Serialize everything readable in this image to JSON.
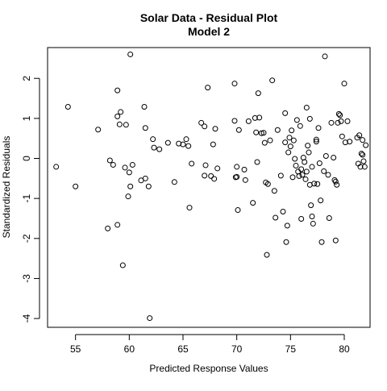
{
  "chart_data": {
    "type": "scatter",
    "title": "Solar Data - Residual Plot",
    "subtitle": "Model 2",
    "xlabel": "Predicted Response Values",
    "ylabel": "Standardized Residuals",
    "xlim": [
      52.4,
      82.4
    ],
    "ylim": [
      -4.22,
      2.77
    ],
    "x_ticks": [
      55,
      60,
      65,
      70,
      75,
      80
    ],
    "y_ticks": [
      -4,
      -3,
      -2,
      -1,
      0,
      1,
      2
    ],
    "x_tick_labels": [
      "55",
      "60",
      "65",
      "70",
      "75",
      "80"
    ],
    "y_tick_labels": [
      "-4",
      "-3",
      "-2",
      "-1",
      "0",
      "1",
      "2"
    ],
    "grid": false,
    "legend": "none",
    "marker": "open-circle",
    "colors": {
      "points": "#000000",
      "axes": "#000000",
      "background": "#ffffff"
    },
    "points": [
      {
        "x": 53.2,
        "y": -0.21
      },
      {
        "x": 54.3,
        "y": 1.29
      },
      {
        "x": 55.0,
        "y": -0.7
      },
      {
        "x": 57.1,
        "y": 0.72
      },
      {
        "x": 58.0,
        "y": -1.75
      },
      {
        "x": 58.2,
        "y": -0.05
      },
      {
        "x": 58.5,
        "y": -0.16
      },
      {
        "x": 58.9,
        "y": 1.7
      },
      {
        "x": 58.9,
        "y": 1.05
      },
      {
        "x": 58.9,
        "y": -1.66
      },
      {
        "x": 59.1,
        "y": 0.85
      },
      {
        "x": 59.2,
        "y": 1.16
      },
      {
        "x": 59.4,
        "y": -2.67
      },
      {
        "x": 59.6,
        "y": -0.23
      },
      {
        "x": 59.7,
        "y": 0.84
      },
      {
        "x": 59.9,
        "y": -0.95
      },
      {
        "x": 60.0,
        "y": -0.35
      },
      {
        "x": 60.1,
        "y": -0.7
      },
      {
        "x": 60.1,
        "y": 2.6
      },
      {
        "x": 60.3,
        "y": -0.16
      },
      {
        "x": 61.1,
        "y": -0.55
      },
      {
        "x": 61.4,
        "y": 1.29
      },
      {
        "x": 61.5,
        "y": -0.5
      },
      {
        "x": 61.5,
        "y": 0.76
      },
      {
        "x": 61.8,
        "y": -0.7
      },
      {
        "x": 61.9,
        "y": -3.99
      },
      {
        "x": 62.2,
        "y": 0.48
      },
      {
        "x": 62.3,
        "y": 0.27
      },
      {
        "x": 62.8,
        "y": 0.23
      },
      {
        "x": 63.6,
        "y": 0.39
      },
      {
        "x": 64.2,
        "y": -0.59
      },
      {
        "x": 64.6,
        "y": 0.37
      },
      {
        "x": 65.0,
        "y": 0.35
      },
      {
        "x": 65.3,
        "y": 0.48
      },
      {
        "x": 65.5,
        "y": 0.31
      },
      {
        "x": 65.6,
        "y": -1.23
      },
      {
        "x": 65.8,
        "y": -0.13
      },
      {
        "x": 66.7,
        "y": 0.89
      },
      {
        "x": 67.0,
        "y": 0.8
      },
      {
        "x": 67.1,
        "y": -0.17
      },
      {
        "x": 67.0,
        "y": -0.43
      },
      {
        "x": 67.3,
        "y": 1.77
      },
      {
        "x": 67.6,
        "y": -0.44
      },
      {
        "x": 67.8,
        "y": 0.35
      },
      {
        "x": 67.9,
        "y": -0.51
      },
      {
        "x": 68.0,
        "y": 0.74
      },
      {
        "x": 68.2,
        "y": -0.25
      },
      {
        "x": 69.8,
        "y": 1.87
      },
      {
        "x": 69.8,
        "y": 0.94
      },
      {
        "x": 69.9,
        "y": -0.47
      },
      {
        "x": 70.0,
        "y": -0.46
      },
      {
        "x": 70.0,
        "y": -0.21
      },
      {
        "x": 70.1,
        "y": -1.29
      },
      {
        "x": 70.2,
        "y": 0.71
      },
      {
        "x": 70.7,
        "y": -0.28
      },
      {
        "x": 70.8,
        "y": -0.54
      },
      {
        "x": 71.1,
        "y": 0.93
      },
      {
        "x": 71.5,
        "y": -1.11
      },
      {
        "x": 71.7,
        "y": 1.01
      },
      {
        "x": 71.8,
        "y": 0.65
      },
      {
        "x": 71.9,
        "y": -0.09
      },
      {
        "x": 72.0,
        "y": 1.63
      },
      {
        "x": 72.1,
        "y": 1.02
      },
      {
        "x": 72.3,
        "y": 0.63
      },
      {
        "x": 72.5,
        "y": 0.64
      },
      {
        "x": 72.6,
        "y": 0.39
      },
      {
        "x": 72.7,
        "y": -0.6
      },
      {
        "x": 72.8,
        "y": -2.41
      },
      {
        "x": 72.9,
        "y": -0.64
      },
      {
        "x": 73.1,
        "y": 0.45
      },
      {
        "x": 73.3,
        "y": 1.95
      },
      {
        "x": 73.5,
        "y": -0.81
      },
      {
        "x": 73.6,
        "y": -1.48
      },
      {
        "x": 73.8,
        "y": 0.71
      },
      {
        "x": 74.1,
        "y": -0.43
      },
      {
        "x": 74.3,
        "y": -1.33
      },
      {
        "x": 74.5,
        "y": 1.13
      },
      {
        "x": 74.5,
        "y": 0.4
      },
      {
        "x": 74.6,
        "y": -2.09
      },
      {
        "x": 74.7,
        "y": -1.68
      },
      {
        "x": 74.8,
        "y": 0.15
      },
      {
        "x": 74.9,
        "y": 0.52
      },
      {
        "x": 75.0,
        "y": 0.3
      },
      {
        "x": 75.1,
        "y": 0.7
      },
      {
        "x": 75.2,
        "y": -0.47
      },
      {
        "x": 75.3,
        "y": 0.45
      },
      {
        "x": 75.4,
        "y": -0.01
      },
      {
        "x": 75.5,
        "y": -0.18
      },
      {
        "x": 75.6,
        "y": 0.96
      },
      {
        "x": 75.7,
        "y": -0.33
      },
      {
        "x": 75.8,
        "y": -0.44
      },
      {
        "x": 75.9,
        "y": 0.81
      },
      {
        "x": 76.0,
        "y": -0.27
      },
      {
        "x": 76.0,
        "y": -1.51
      },
      {
        "x": 76.1,
        "y": -0.41
      },
      {
        "x": 76.2,
        "y": 0.02
      },
      {
        "x": 76.3,
        "y": -0.09
      },
      {
        "x": 76.4,
        "y": -0.52
      },
      {
        "x": 76.5,
        "y": 1.27
      },
      {
        "x": 76.5,
        "y": -0.33
      },
      {
        "x": 76.6,
        "y": 0.32
      },
      {
        "x": 76.7,
        "y": 0.15
      },
      {
        "x": 76.8,
        "y": -0.66
      },
      {
        "x": 76.8,
        "y": 0.99
      },
      {
        "x": 76.9,
        "y": -1.17
      },
      {
        "x": 77.0,
        "y": -0.21
      },
      {
        "x": 77.0,
        "y": -1.45
      },
      {
        "x": 77.1,
        "y": -1.63
      },
      {
        "x": 77.2,
        "y": -0.63
      },
      {
        "x": 77.4,
        "y": 0.42
      },
      {
        "x": 77.4,
        "y": 0.47
      },
      {
        "x": 77.5,
        "y": -0.64
      },
      {
        "x": 77.6,
        "y": 0.76
      },
      {
        "x": 77.7,
        "y": -0.12
      },
      {
        "x": 77.8,
        "y": -1.05
      },
      {
        "x": 77.9,
        "y": -2.09
      },
      {
        "x": 78.1,
        "y": -0.32
      },
      {
        "x": 78.2,
        "y": 2.55
      },
      {
        "x": 78.3,
        "y": 0.06
      },
      {
        "x": 78.5,
        "y": -0.41
      },
      {
        "x": 78.6,
        "y": -1.49
      },
      {
        "x": 78.8,
        "y": 0.89
      },
      {
        "x": 79.0,
        "y": 0.02
      },
      {
        "x": 79.1,
        "y": -0.54
      },
      {
        "x": 79.2,
        "y": -0.58
      },
      {
        "x": 79.2,
        "y": -2.05
      },
      {
        "x": 79.3,
        "y": -0.66
      },
      {
        "x": 79.4,
        "y": 0.89
      },
      {
        "x": 79.5,
        "y": 1.11
      },
      {
        "x": 79.6,
        "y": 1.08
      },
      {
        "x": 79.7,
        "y": 0.93
      },
      {
        "x": 79.8,
        "y": 0.55
      },
      {
        "x": 80.0,
        "y": 1.87
      },
      {
        "x": 80.1,
        "y": 0.4
      },
      {
        "x": 80.3,
        "y": 0.93
      },
      {
        "x": 80.5,
        "y": 0.42
      },
      {
        "x": 81.2,
        "y": 0.52
      },
      {
        "x": 81.3,
        "y": -0.13
      },
      {
        "x": 81.4,
        "y": 0.58
      },
      {
        "x": 81.5,
        "y": -0.21
      },
      {
        "x": 81.6,
        "y": 0.12
      },
      {
        "x": 81.7,
        "y": 0.09
      },
      {
        "x": 81.7,
        "y": 0.46
      },
      {
        "x": 81.8,
        "y": -0.07
      },
      {
        "x": 81.9,
        "y": -0.21
      },
      {
        "x": 82.0,
        "y": 0.33
      }
    ]
  }
}
